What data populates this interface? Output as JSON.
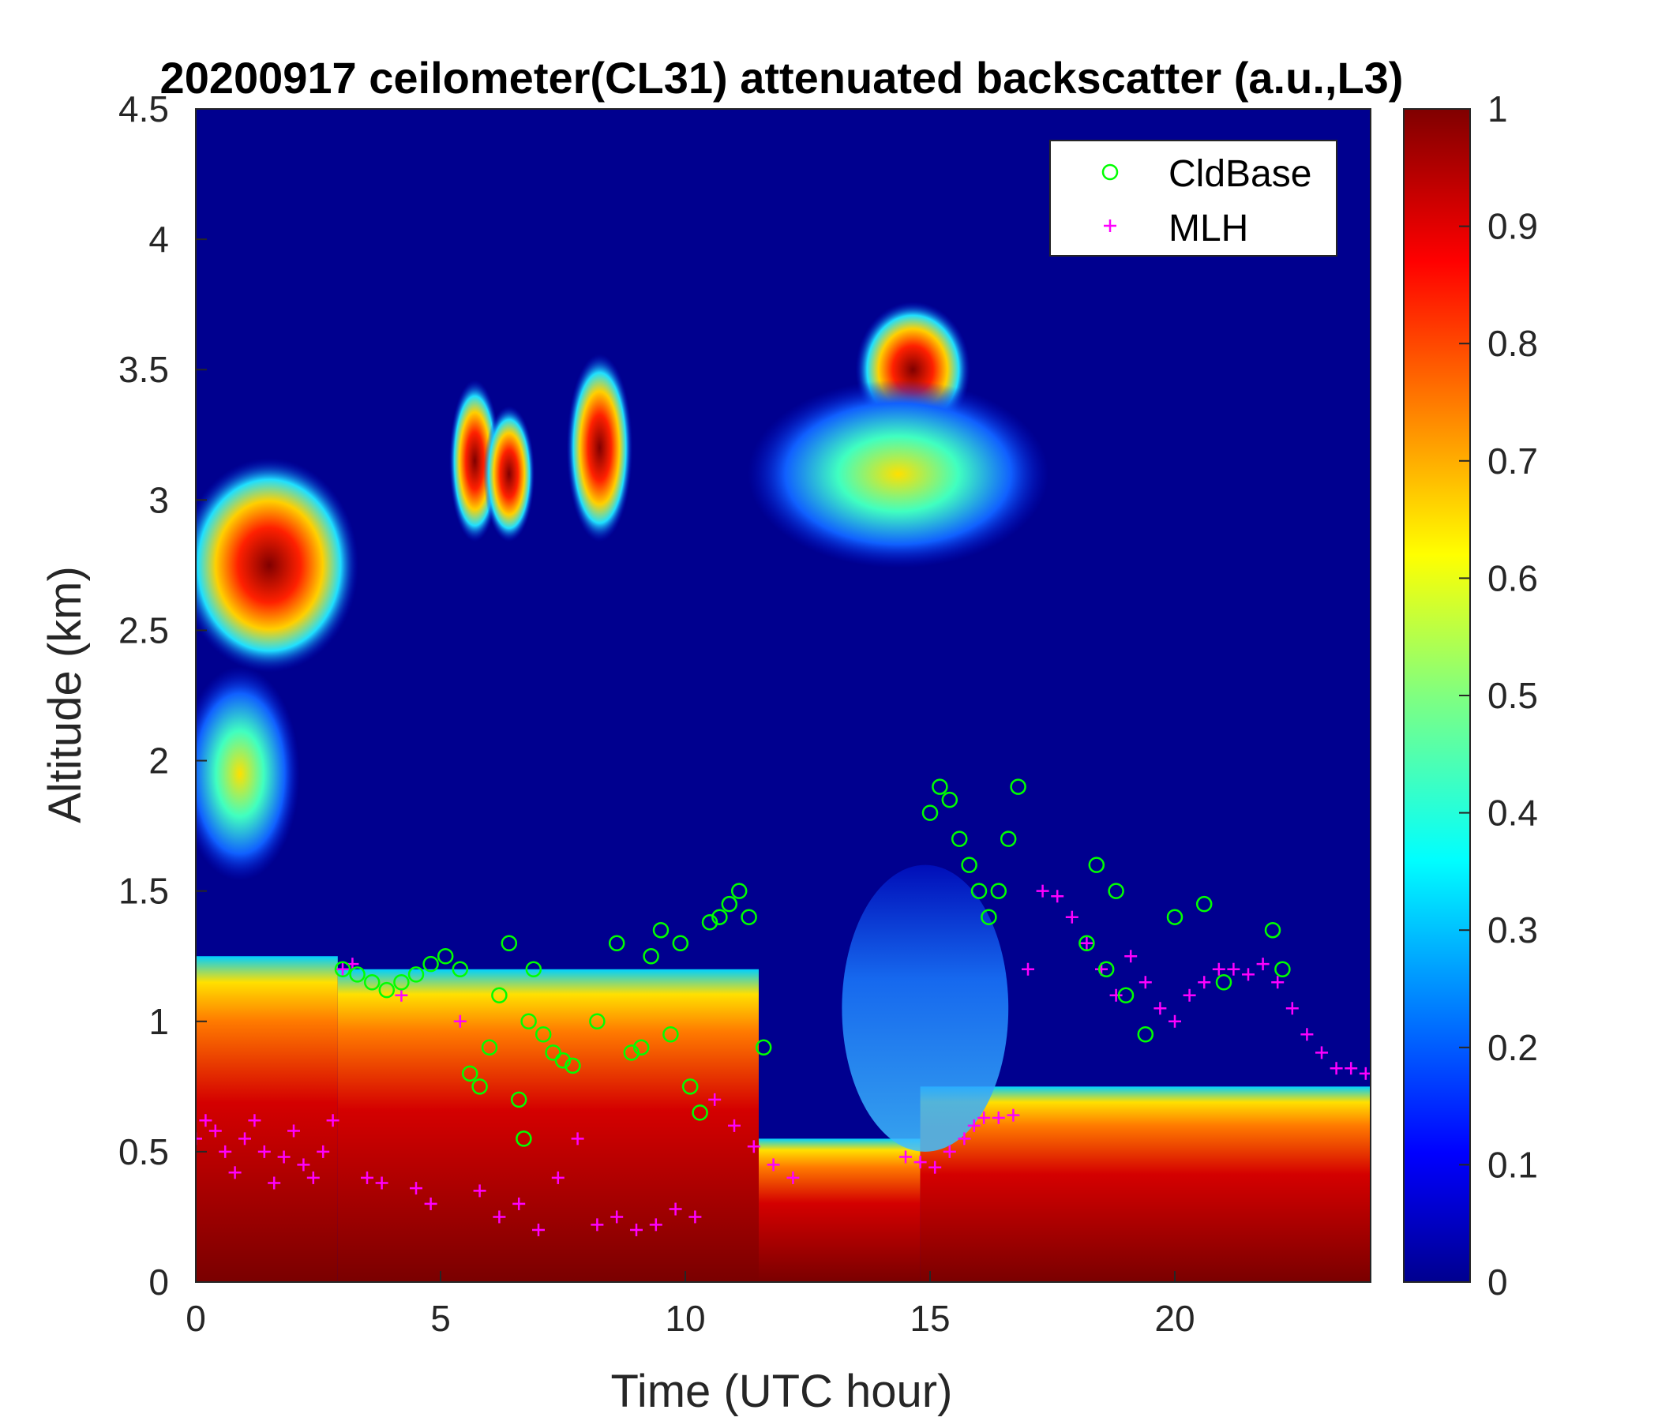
{
  "chart_data": {
    "type": "heatmap",
    "title": "20200917 ceilometer(CL31) attenuated backscatter (a.u.,L3)",
    "xlabel": "Time (UTC hour)",
    "ylabel": "Altitude (km)",
    "xlim": [
      0,
      24
    ],
    "ylim": [
      0,
      4.5
    ],
    "xticks": [
      "0",
      "5",
      "10",
      "15",
      "20"
    ],
    "yticks": [
      "0",
      "0.5",
      "1",
      "1.5",
      "2",
      "2.5",
      "3",
      "3.5",
      "4",
      "4.5"
    ],
    "colorbar": {
      "colormap": "jet",
      "range": [
        0,
        1
      ],
      "ticks": [
        "0",
        "0.1",
        "0.2",
        "0.3",
        "0.4",
        "0.5",
        "0.6",
        "0.7",
        "0.8",
        "0.9",
        "1"
      ]
    },
    "legend": {
      "position": "top-right",
      "entries": [
        {
          "label": "CldBase",
          "marker": "circle",
          "color": "#00ff00"
        },
        {
          "label": "MLH",
          "marker": "plus",
          "color": "#ff00ff"
        }
      ]
    },
    "colors": {
      "cldbase": "#00ff00",
      "mlh": "#ff00ff",
      "background": "#00008f"
    },
    "backscatter_features": [
      {
        "t0": 0,
        "t1": 2.9,
        "h0": 0,
        "h1": 1.25,
        "value": 0.85,
        "desc": "boundary layer"
      },
      {
        "t0": 2.9,
        "t1": 11.5,
        "h0": 0,
        "h1": 1.2,
        "value": 0.95,
        "desc": "boundary layer"
      },
      {
        "t0": 11.5,
        "t1": 14.8,
        "h0": 0,
        "h1": 0.55,
        "value": 0.95,
        "desc": "boundary layer"
      },
      {
        "t0": 14.8,
        "t1": 24,
        "h0": 0,
        "h1": 0.75,
        "value": 0.95,
        "desc": "boundary layer"
      },
      {
        "t0": 0,
        "t1": 3,
        "h0": 2.4,
        "h1": 3.1,
        "value": 0.9,
        "desc": "elevated aerosol layer"
      },
      {
        "t0": 0,
        "t1": 1.8,
        "h0": 1.6,
        "h1": 2.3,
        "value": 0.6,
        "desc": "elevated aerosol layer"
      },
      {
        "t0": 5.5,
        "t1": 5.9,
        "h0": 2.9,
        "h1": 3.4,
        "value": 0.8,
        "desc": "cloud"
      },
      {
        "t0": 6.2,
        "t1": 6.6,
        "h0": 2.9,
        "h1": 3.3,
        "value": 0.8,
        "desc": "cloud"
      },
      {
        "t0": 7.9,
        "t1": 8.6,
        "h0": 2.9,
        "h1": 3.5,
        "value": 0.9,
        "desc": "cloud"
      },
      {
        "t0": 13.8,
        "t1": 15.5,
        "h0": 3.3,
        "h1": 3.7,
        "value": 0.95,
        "desc": "cloud"
      },
      {
        "t0": 11.6,
        "t1": 17.1,
        "h0": 2.8,
        "h1": 3.4,
        "value": 0.5,
        "desc": "cloud"
      },
      {
        "t0": 13.2,
        "t1": 16.6,
        "h0": 0.5,
        "h1": 1.6,
        "value": 0.35,
        "desc": "residual layer"
      }
    ],
    "series": [
      {
        "name": "CldBase",
        "marker": "circle",
        "x": [
          3.0,
          3.3,
          3.6,
          3.9,
          4.2,
          4.5,
          4.8,
          5.1,
          5.4,
          5.6,
          5.8,
          6.0,
          6.2,
          6.4,
          6.6,
          6.7,
          6.8,
          6.9,
          7.1,
          7.3,
          7.5,
          7.7,
          8.2,
          8.6,
          8.9,
          9.1,
          9.3,
          9.5,
          9.7,
          9.9,
          10.1,
          10.3,
          10.5,
          10.7,
          10.9,
          11.1,
          11.3,
          11.6,
          15.0,
          15.2,
          15.4,
          15.6,
          15.8,
          16.0,
          16.2,
          16.4,
          16.6,
          16.8,
          18.2,
          18.4,
          18.6,
          18.8,
          19.0,
          19.4,
          20.0,
          20.6,
          21.0,
          22.0,
          22.2
        ],
        "y": [
          1.2,
          1.18,
          1.15,
          1.12,
          1.15,
          1.18,
          1.22,
          1.25,
          1.2,
          0.8,
          0.75,
          0.9,
          1.1,
          1.3,
          0.7,
          0.55,
          1.0,
          1.2,
          0.95,
          0.88,
          0.85,
          0.83,
          1.0,
          1.3,
          0.88,
          0.9,
          1.25,
          1.35,
          0.95,
          1.3,
          0.75,
          0.65,
          1.38,
          1.4,
          1.45,
          1.5,
          1.4,
          0.9,
          1.8,
          1.9,
          1.85,
          1.7,
          1.6,
          1.5,
          1.4,
          1.5,
          1.7,
          1.9,
          1.3,
          1.6,
          1.2,
          1.5,
          1.1,
          0.95,
          1.4,
          1.45,
          1.15,
          1.35,
          1.2
        ]
      },
      {
        "name": "MLH",
        "marker": "plus",
        "x": [
          0.0,
          0.2,
          0.4,
          0.6,
          0.8,
          1.0,
          1.2,
          1.4,
          1.6,
          1.8,
          2.0,
          2.2,
          2.4,
          2.6,
          2.8,
          3.0,
          3.2,
          3.5,
          3.8,
          4.2,
          4.5,
          4.8,
          5.4,
          5.8,
          6.2,
          6.6,
          7.0,
          7.4,
          7.8,
          8.2,
          8.6,
          9.0,
          9.4,
          9.8,
          10.2,
          10.6,
          11.0,
          11.4,
          11.8,
          12.2,
          14.5,
          14.8,
          15.1,
          15.4,
          15.7,
          15.9,
          16.1,
          16.4,
          16.7,
          17.0,
          17.3,
          17.6,
          17.9,
          18.2,
          18.5,
          18.8,
          19.1,
          19.4,
          19.7,
          20.0,
          20.3,
          20.6,
          20.9,
          21.2,
          21.5,
          21.8,
          22.1,
          22.4,
          22.7,
          23.0,
          23.3,
          23.6,
          23.9
        ],
        "y": [
          0.55,
          0.62,
          0.58,
          0.5,
          0.42,
          0.55,
          0.62,
          0.5,
          0.38,
          0.48,
          0.58,
          0.45,
          0.4,
          0.5,
          0.62,
          1.2,
          1.22,
          0.4,
          0.38,
          1.1,
          0.36,
          0.3,
          1.0,
          0.35,
          0.25,
          0.3,
          0.2,
          0.4,
          0.55,
          0.22,
          0.25,
          0.2,
          0.22,
          0.28,
          0.25,
          0.7,
          0.6,
          0.52,
          0.45,
          0.4,
          0.48,
          0.46,
          0.44,
          0.5,
          0.55,
          0.6,
          0.63,
          0.63,
          0.64,
          1.2,
          1.5,
          1.48,
          1.4,
          1.3,
          1.2,
          1.1,
          1.25,
          1.15,
          1.05,
          1.0,
          1.1,
          1.15,
          1.2,
          1.2,
          1.18,
          1.22,
          1.15,
          1.05,
          0.95,
          0.88,
          0.82,
          0.82,
          0.8
        ]
      }
    ]
  }
}
